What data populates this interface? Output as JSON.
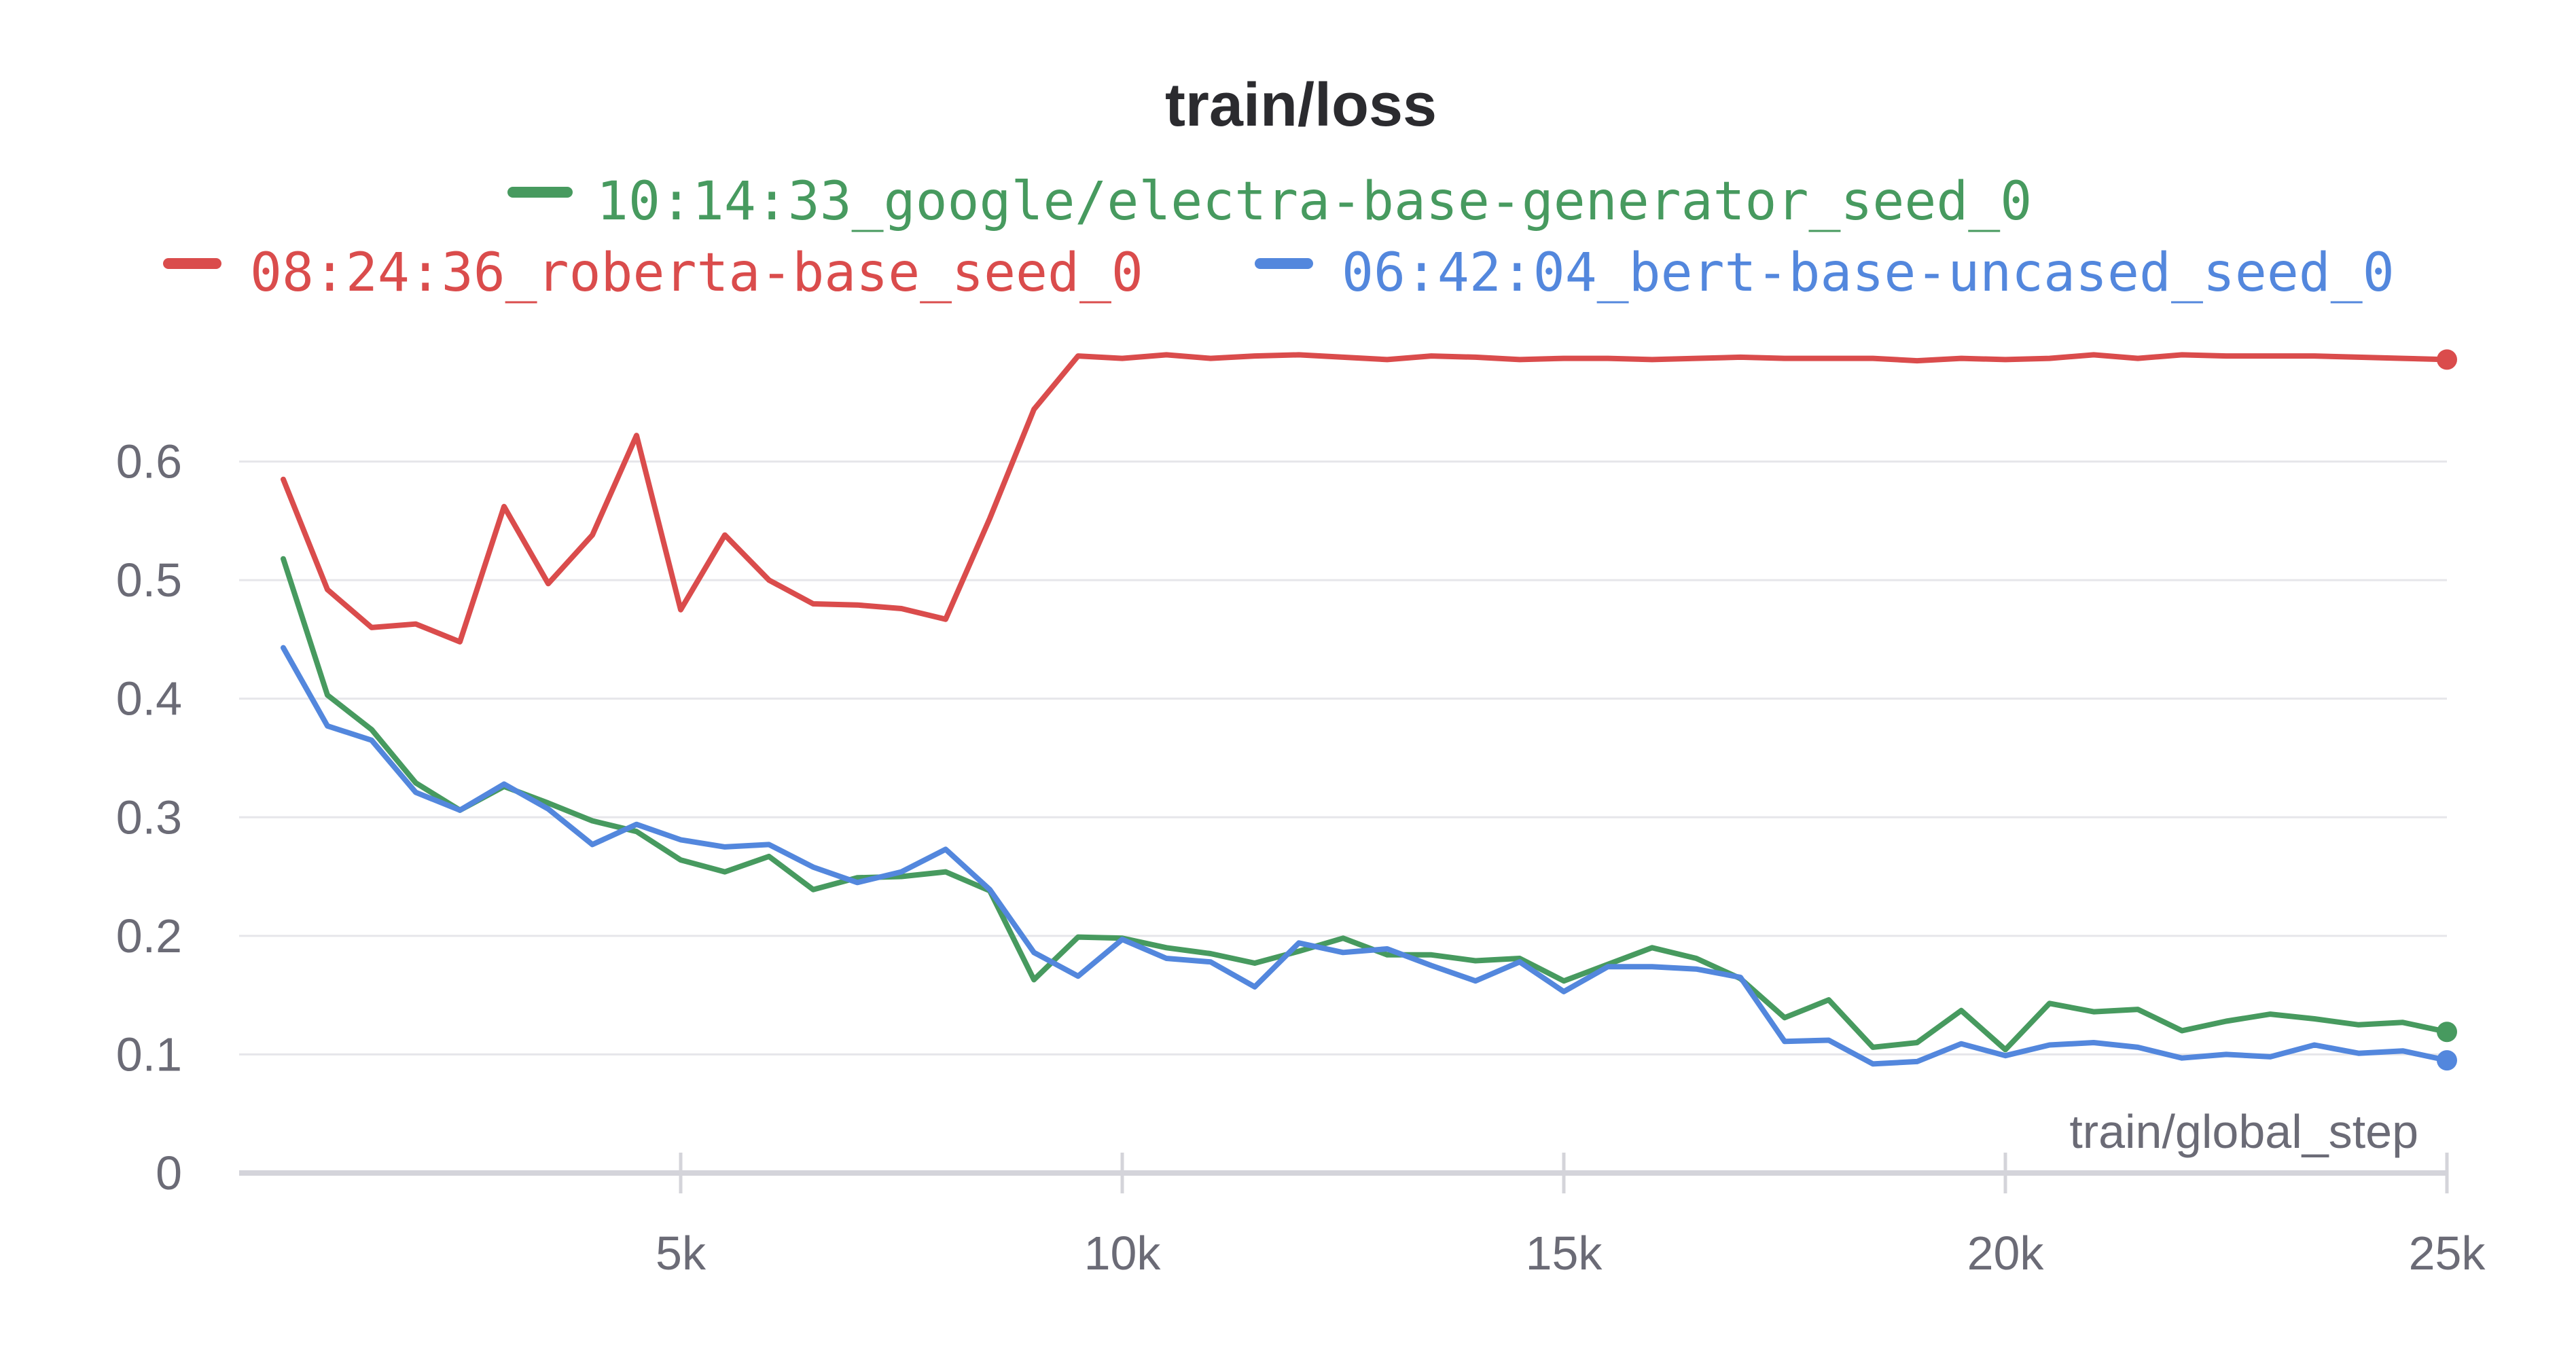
{
  "chart_data": {
    "type": "line",
    "title": "train/loss",
    "xlabel": "train/global_step",
    "ylabel": "",
    "xlim": [
      0,
      25000
    ],
    "ylim": [
      0,
      0.72
    ],
    "x_ticks": [
      {
        "value": 5000,
        "label": "5k"
      },
      {
        "value": 10000,
        "label": "10k"
      },
      {
        "value": 15000,
        "label": "15k"
      },
      {
        "value": 20000,
        "label": "20k"
      },
      {
        "value": 25000,
        "label": "25k"
      }
    ],
    "y_ticks": [
      {
        "value": 0,
        "label": "0"
      },
      {
        "value": 0.1,
        "label": "0.1"
      },
      {
        "value": 0.2,
        "label": "0.2"
      },
      {
        "value": 0.3,
        "label": "0.3"
      },
      {
        "value": 0.4,
        "label": "0.4"
      },
      {
        "value": 0.5,
        "label": "0.5"
      },
      {
        "value": 0.6,
        "label": "0.6"
      }
    ],
    "grid": true,
    "legend_position": "top",
    "x": [
      500,
      1000,
      1500,
      2000,
      2500,
      3000,
      3500,
      4000,
      4500,
      5000,
      5500,
      6000,
      6500,
      7000,
      7500,
      8000,
      8500,
      9000,
      9500,
      10000,
      10500,
      11000,
      11500,
      12000,
      12500,
      13000,
      13500,
      14000,
      14500,
      15000,
      15500,
      16000,
      16500,
      17000,
      17500,
      18000,
      18500,
      19000,
      19500,
      20000,
      20500,
      21000,
      21500,
      22000,
      22500,
      23000,
      23500,
      24000,
      24500,
      25000
    ],
    "series": [
      {
        "name": "10:14:33_google/electra-base-generator_seed_0",
        "color": "#479a5f",
        "values": [
          0.518,
          0.403,
          0.374,
          0.329,
          0.306,
          0.326,
          0.312,
          0.297,
          0.288,
          0.264,
          0.254,
          0.267,
          0.239,
          0.249,
          0.25,
          0.254,
          0.238,
          0.163,
          0.199,
          0.198,
          0.19,
          0.185,
          0.177,
          0.187,
          0.198,
          0.184,
          0.184,
          0.179,
          0.181,
          0.162,
          0.176,
          0.19,
          0.181,
          0.164,
          0.131,
          0.146,
          0.106,
          0.11,
          0.137,
          0.104,
          0.143,
          0.136,
          0.138,
          0.12,
          0.128,
          0.134,
          0.13,
          0.125,
          0.127,
          0.119
        ]
      },
      {
        "name": "08:24:36_roberta-base_seed_0",
        "color": "#da4c4c",
        "values": [
          0.585,
          0.492,
          0.46,
          0.463,
          0.448,
          0.562,
          0.497,
          0.538,
          0.622,
          0.475,
          0.538,
          0.5,
          0.48,
          0.479,
          0.476,
          0.467,
          0.552,
          0.644,
          0.689,
          0.687,
          0.69,
          0.687,
          0.689,
          0.69,
          0.688,
          0.686,
          0.689,
          0.688,
          0.686,
          0.687,
          0.687,
          0.686,
          0.687,
          0.688,
          0.687,
          0.687,
          0.687,
          0.685,
          0.687,
          0.686,
          0.687,
          0.69,
          0.687,
          0.69,
          0.689,
          0.689,
          0.689,
          0.688,
          0.687,
          0.686
        ]
      },
      {
        "name": "06:42:04_bert-base-uncased_seed_0",
        "color": "#5387dd",
        "values": [
          0.443,
          0.377,
          0.365,
          0.321,
          0.306,
          0.328,
          0.307,
          0.277,
          0.294,
          0.281,
          0.275,
          0.277,
          0.258,
          0.245,
          0.254,
          0.273,
          0.239,
          0.186,
          0.166,
          0.197,
          0.181,
          0.178,
          0.157,
          0.194,
          0.186,
          0.189,
          0.175,
          0.162,
          0.178,
          0.153,
          0.174,
          0.174,
          0.172,
          0.165,
          0.111,
          0.112,
          0.092,
          0.094,
          0.109,
          0.099,
          0.108,
          0.11,
          0.106,
          0.097,
          0.1,
          0.098,
          0.108,
          0.101,
          0.103,
          0.095
        ]
      }
    ]
  }
}
